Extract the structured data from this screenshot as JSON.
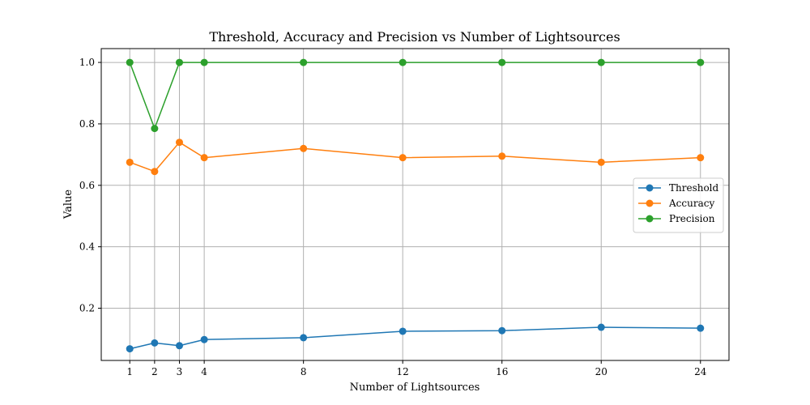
{
  "chart_data": {
    "type": "line",
    "title": "Threshold, Accuracy and Precision vs Number of Lightsources",
    "xlabel": "Number of Lightsources",
    "ylabel": "Value",
    "x": [
      1,
      2,
      3,
      4,
      8,
      12,
      16,
      20,
      24
    ],
    "xticks": [
      1,
      2,
      3,
      4,
      8,
      12,
      16,
      20,
      24
    ],
    "xlim": [
      -0.15,
      25.15
    ],
    "yticks": [
      0.2,
      0.4,
      0.6,
      0.8,
      1.0
    ],
    "ytick_labels": [
      "0.2",
      "0.4",
      "0.6",
      "0.8",
      "1.0"
    ],
    "ylim": [
      0.03,
      1.045
    ],
    "grid": true,
    "legend_position": "center-right",
    "series": [
      {
        "name": "Threshold",
        "color": "#1f77b4",
        "values": [
          0.068,
          0.087,
          0.078,
          0.098,
          0.104,
          0.125,
          0.127,
          0.138,
          0.135
        ]
      },
      {
        "name": "Accuracy",
        "color": "#ff7f0e",
        "values": [
          0.675,
          0.645,
          0.74,
          0.69,
          0.72,
          0.69,
          0.695,
          0.675,
          0.69
        ]
      },
      {
        "name": "Precision",
        "color": "#2ca02c",
        "values": [
          1.0,
          0.785,
          1.0,
          1.0,
          1.0,
          1.0,
          1.0,
          1.0,
          1.0
        ]
      }
    ]
  }
}
